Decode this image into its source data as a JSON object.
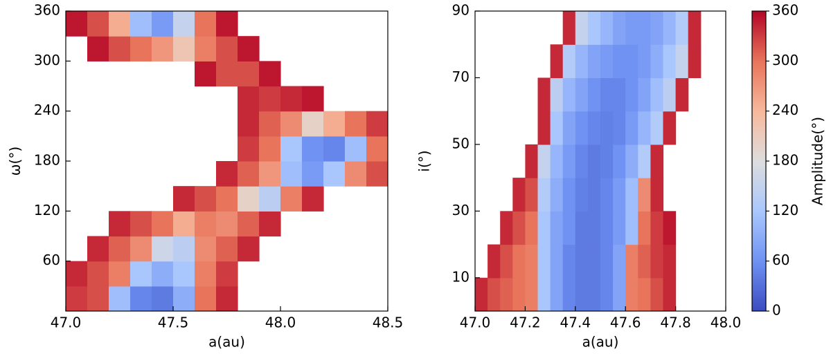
{
  "chart_data": [
    {
      "type": "heatmap",
      "xlabel": "a(au)",
      "ylabel": "ω(°)",
      "x": [
        47.05,
        47.15,
        47.25,
        47.35,
        47.45,
        47.55,
        47.65,
        47.75,
        47.85,
        47.95,
        48.05,
        48.15,
        48.25,
        48.35,
        48.45
      ],
      "y": [
        15,
        45,
        75,
        105,
        135,
        165,
        195,
        225,
        255,
        285,
        315,
        345
      ],
      "z": [
        [
          330,
          320,
          110,
          50,
          40,
          90,
          300,
          340,
          null,
          null,
          null,
          null,
          null,
          null,
          null
        ],
        [
          340,
          320,
          290,
          120,
          90,
          120,
          290,
          330,
          null,
          null,
          null,
          null,
          null,
          null,
          null
        ],
        [
          null,
          340,
          310,
          280,
          160,
          140,
          280,
          310,
          340,
          null,
          null,
          null,
          null,
          null,
          null
        ],
        [
          null,
          null,
          340,
          320,
          300,
          250,
          290,
          280,
          310,
          340,
          null,
          null,
          null,
          null,
          null
        ],
        [
          null,
          null,
          null,
          null,
          null,
          340,
          320,
          300,
          200,
          140,
          290,
          340,
          null,
          null,
          null
        ],
        [
          null,
          null,
          null,
          null,
          null,
          null,
          null,
          340,
          310,
          270,
          110,
          70,
          120,
          280,
          320
        ],
        [
          null,
          null,
          null,
          null,
          null,
          null,
          null,
          null,
          330,
          300,
          120,
          60,
          50,
          110,
          300
        ],
        [
          null,
          null,
          null,
          null,
          null,
          null,
          null,
          null,
          340,
          310,
          280,
          200,
          250,
          300,
          330
        ],
        [
          null,
          null,
          null,
          null,
          null,
          null,
          null,
          null,
          340,
          330,
          340,
          350,
          null,
          null,
          null
        ],
        [
          null,
          null,
          null,
          null,
          null,
          null,
          350,
          320,
          320,
          350,
          null,
          null,
          null,
          null,
          null
        ],
        [
          null,
          350,
          320,
          300,
          270,
          220,
          290,
          320,
          350,
          null,
          null,
          null,
          null,
          null,
          null
        ],
        [
          350,
          320,
          250,
          110,
          70,
          150,
          300,
          350,
          null,
          null,
          null,
          null,
          null,
          null,
          null
        ]
      ],
      "xlim": [
        47.0,
        48.5
      ],
      "ylim": [
        0,
        360
      ],
      "xticks": [
        {
          "value": 47,
          "label": "47.0"
        },
        47.5,
        {
          "value": 48,
          "label": "48.0"
        },
        48.5
      ],
      "yticks": [
        60,
        120,
        180,
        240,
        300,
        360
      ],
      "zlim": [
        0,
        360
      ],
      "colormap": [
        "#3b4cc0",
        "#6f92f3",
        "#aac7fd",
        "#dddddd",
        "#f7b89c",
        "#e7745b",
        "#b40426"
      ]
    },
    {
      "type": "heatmap",
      "xlabel": "a(au)",
      "ylabel": "i(°)",
      "x": [
        47.025,
        47.075,
        47.125,
        47.175,
        47.225,
        47.275,
        47.325,
        47.375,
        47.425,
        47.475,
        47.525,
        47.575,
        47.625,
        47.675,
        47.725,
        47.775,
        47.825,
        47.875,
        47.925,
        47.975
      ],
      "y": [
        5,
        15,
        25,
        35,
        45,
        55,
        65,
        75,
        85
      ],
      "z": [
        [
          340,
          320,
          310,
          300,
          290,
          120,
          80,
          50,
          40,
          40,
          50,
          80,
          290,
          300,
          320,
          340,
          null,
          null,
          null,
          null
        ],
        [
          null,
          340,
          320,
          300,
          290,
          120,
          80,
          50,
          40,
          40,
          50,
          80,
          290,
          310,
          330,
          340,
          null,
          null,
          null,
          null
        ],
        [
          null,
          null,
          340,
          320,
          300,
          120,
          80,
          60,
          40,
          40,
          50,
          70,
          110,
          300,
          330,
          350,
          null,
          null,
          null,
          null
        ],
        [
          null,
          null,
          null,
          340,
          320,
          130,
          90,
          60,
          45,
          40,
          50,
          70,
          110,
          280,
          340,
          null,
          null,
          null,
          null,
          null
        ],
        [
          null,
          null,
          null,
          null,
          340,
          150,
          100,
          70,
          50,
          40,
          45,
          60,
          90,
          130,
          340,
          null,
          null,
          null,
          null,
          null
        ],
        [
          null,
          null,
          null,
          null,
          null,
          340,
          120,
          80,
          60,
          50,
          45,
          50,
          70,
          100,
          130,
          340,
          null,
          null,
          null,
          null
        ],
        [
          null,
          null,
          null,
          null,
          null,
          340,
          140,
          100,
          80,
          60,
          50,
          50,
          60,
          80,
          110,
          140,
          340,
          null,
          null,
          null
        ],
        [
          null,
          null,
          null,
          null,
          null,
          null,
          340,
          130,
          100,
          80,
          70,
          60,
          60,
          70,
          90,
          120,
          150,
          340,
          null,
          null
        ],
        [
          null,
          null,
          null,
          null,
          null,
          null,
          null,
          340,
          150,
          120,
          100,
          80,
          70,
          70,
          80,
          100,
          130,
          340,
          null,
          null
        ]
      ],
      "xlim": [
        47.0,
        48.0
      ],
      "ylim": [
        0,
        90
      ],
      "xticks": [
        {
          "value": 47,
          "label": "47.0"
        },
        47.2,
        47.4,
        47.6,
        47.8,
        {
          "value": 48,
          "label": "48.0"
        }
      ],
      "yticks": [
        10,
        30,
        50,
        70,
        90
      ],
      "zlim": [
        0,
        360
      ],
      "colormap": [
        "#3b4cc0",
        "#6f92f3",
        "#aac7fd",
        "#dddddd",
        "#f7b89c",
        "#e7745b",
        "#b40426"
      ],
      "colorbar": {
        "label": "Amplitude(°)",
        "lim": [
          0,
          360
        ],
        "ticks": [
          0,
          60,
          120,
          180,
          240,
          300,
          360
        ]
      }
    }
  ]
}
